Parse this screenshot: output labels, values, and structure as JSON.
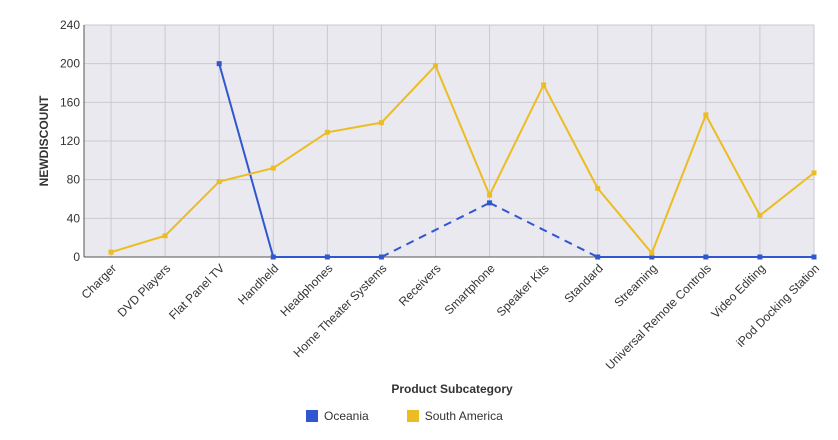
{
  "chart_data": {
    "type": "line",
    "xlabel": "Product Subcategory",
    "ylabel": "NEWDISCOUNT",
    "ylim": [
      0,
      240
    ],
    "yticks": [
      0,
      40,
      80,
      120,
      160,
      200,
      240
    ],
    "grid": true,
    "legend_position": "bottom",
    "categories": [
      "Charger",
      "DVD Players",
      "Flat Panel TV",
      "Handheld",
      "Headphones",
      "Home Theater Systems",
      "Receivers",
      "Smartphone",
      "Speaker Kits",
      "Standard",
      "Streaming",
      "Universal Remote Controls",
      "Video Editing",
      "iPod Docking Station"
    ],
    "series": [
      {
        "name": "Oceania",
        "color": "#3057d0",
        "values": [
          null,
          null,
          200,
          0,
          0,
          0,
          null,
          56,
          null,
          0,
          0,
          0,
          0,
          0
        ]
      },
      {
        "name": "South America",
        "color": "#ecbd22",
        "values": [
          5,
          22,
          78,
          92,
          129,
          139,
          198,
          64,
          178,
          71,
          4,
          147,
          43,
          87
        ]
      }
    ]
  }
}
